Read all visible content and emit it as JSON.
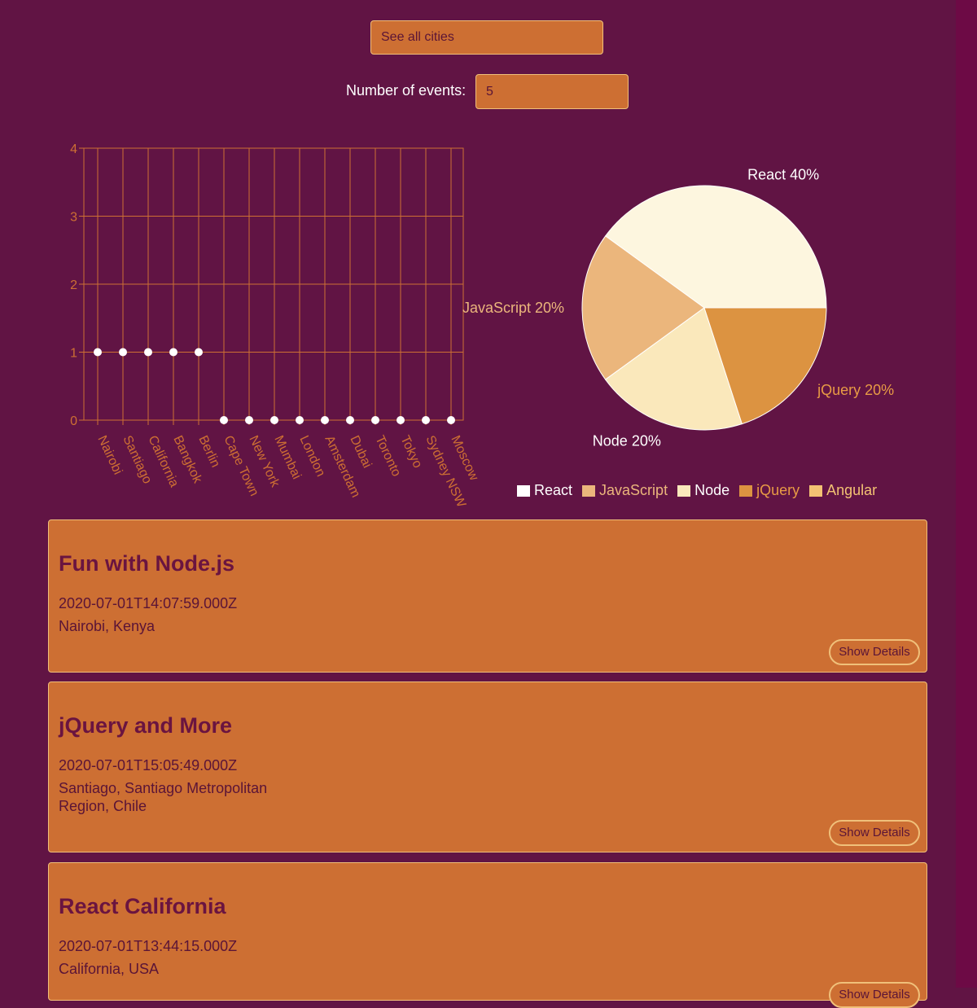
{
  "search": {
    "value": "See all cities"
  },
  "events_count": {
    "label": "Number of events:",
    "value": "5"
  },
  "chart_data": [
    {
      "type": "scatter",
      "categories": [
        "Nairobi",
        "Santiago",
        "California",
        "Bangkok",
        "Berlin",
        "Cape Town",
        "New York",
        "Mumbai",
        "London",
        "Amsterdam",
        "Dubai",
        "Toronto",
        "Tokyo",
        "Sydney NSW",
        "Moscow"
      ],
      "values": [
        1,
        1,
        1,
        1,
        1,
        0,
        0,
        0,
        0,
        0,
        0,
        0,
        0,
        0,
        0
      ],
      "ylim": [
        0,
        4
      ],
      "yticks": [
        "0",
        "1",
        "2",
        "3",
        "4"
      ],
      "grid": true,
      "colors": {
        "axis": "#cd6f33",
        "point": "#ffffff"
      }
    },
    {
      "type": "pie",
      "slices": [
        {
          "label": "React",
          "value": 40,
          "display": "React 40%",
          "color": "#fdf6df"
        },
        {
          "label": "JavaScript",
          "value": 20,
          "display": "JavaScript 20%",
          "color": "#ebb67c"
        },
        {
          "label": "Node",
          "value": 20,
          "display": "Node 20%",
          "color": "#fae8bb"
        },
        {
          "label": "jQuery",
          "value": 20,
          "display": "jQuery 20%",
          "color": "#dc9341"
        },
        {
          "label": "Angular",
          "value": 0,
          "display": "",
          "color": "#f3c273"
        }
      ],
      "legend": [
        "React",
        "JavaScript",
        "Node",
        "jQuery",
        "Angular"
      ],
      "legend_position": "bottom",
      "legend_colors": [
        "#ffffff",
        "#ebb67c",
        "#fae8bb",
        "#dc9341",
        "#f3c273"
      ],
      "legend_text_colors": [
        "#ffffff",
        "#ebb67c",
        "#ffffff",
        "#e89b45",
        "#f3c273"
      ]
    }
  ],
  "events": [
    {
      "title": "Fun with Node.js",
      "date": "2020-07-01T14:07:59.000Z",
      "location": "Nairobi, Kenya",
      "button": "Show Details"
    },
    {
      "title": "jQuery and More",
      "date": "2020-07-01T15:05:49.000Z",
      "location": "Santiago, Santiago Metropolitan Region, Chile",
      "button": "Show Details"
    },
    {
      "title": "React California",
      "date": "2020-07-01T13:44:15.000Z",
      "location": "California, USA",
      "button": "Show Details"
    }
  ],
  "colors": {
    "background": "#611444",
    "accent": "#cd6f33",
    "border": "#f0c07a",
    "title": "#6a1440"
  }
}
